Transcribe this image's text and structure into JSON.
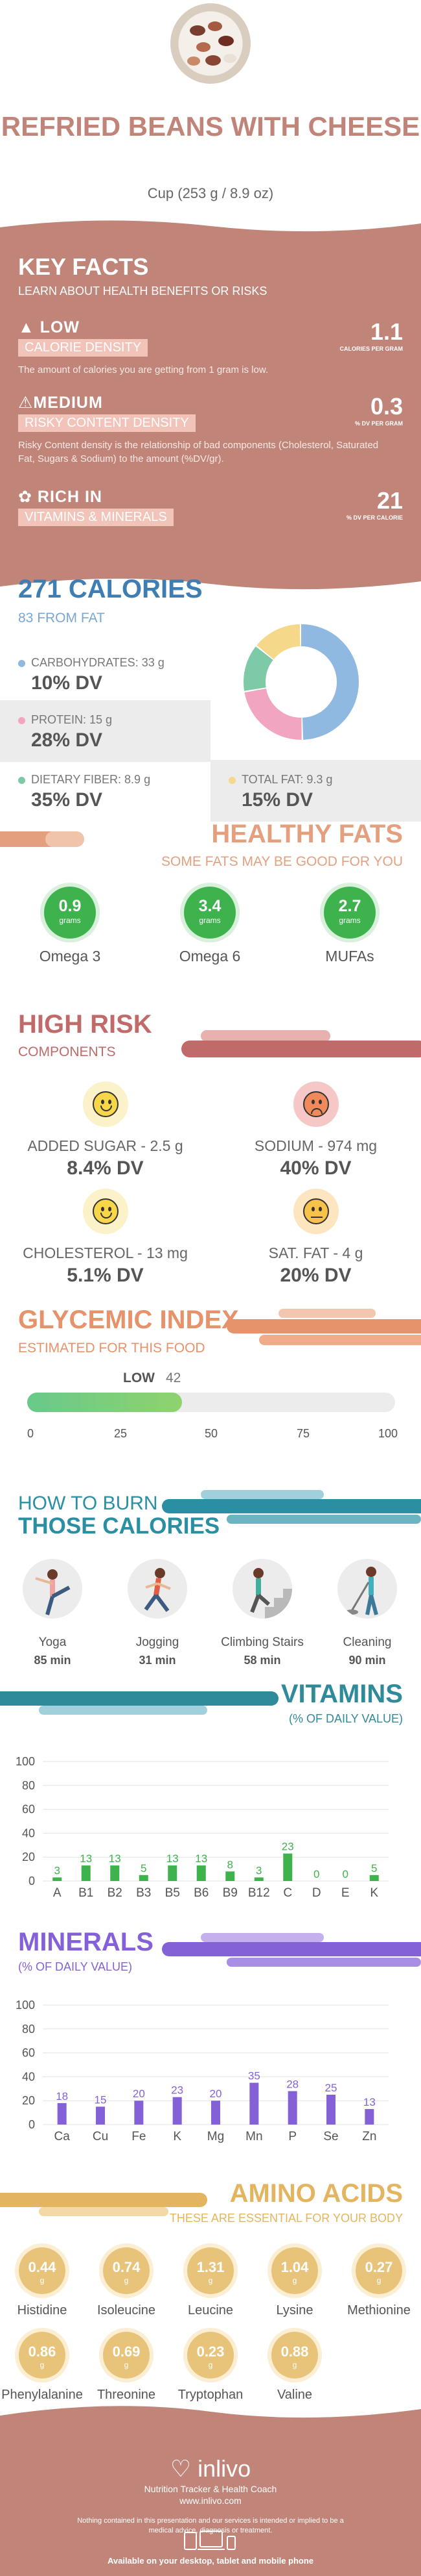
{
  "header": {
    "title": "REFRIED BEANS WITH CHEESE",
    "serving": "Cup (253 g / 8.9 oz)"
  },
  "key_facts": {
    "title": "KEY FACTS",
    "subtitle": "LEARN ABOUT HEALTH BENEFITS OR RISKS",
    "items": [
      {
        "tag1": "LOW",
        "tag2": "CALORIE DENSITY",
        "desc": "The amount of calories you are getting from 1 gram is low.",
        "value": "1.1",
        "unit": "CALORIES PER GRAM",
        "icon": "fire-icon"
      },
      {
        "tag1": "MEDIUM",
        "tag2": "RISKY CONTENT DENSITY",
        "desc": "Risky Content density is the relationship of bad components (Cholesterol, Saturated Fat, Sugars & Sodium) to the amount (%DV/gr).",
        "value": "0.3",
        "unit": "% DV PER GRAM",
        "icon": "warning-icon"
      },
      {
        "tag1": "RICH IN",
        "tag2": "VITAMINS & MINERALS",
        "desc": "",
        "value": "21",
        "unit": "% DV PER CALORIE",
        "icon": "leaf-icon"
      }
    ]
  },
  "calories": {
    "title": "271 CALORIES",
    "subtitle": "83 FROM FAT",
    "macros": [
      {
        "label": "CARBOHYDRATES",
        "amount": ": 33 g",
        "dv": "10% DV",
        "color": "#8fb9e0"
      },
      {
        "label": "PROTEIN",
        "amount": ": 15 g",
        "dv": "28% DV",
        "color": "#f2a5c0"
      },
      {
        "label": "DIETARY FIBER",
        "amount": ": 8.9 g",
        "dv": "35% DV",
        "color": "#7fcaa6"
      },
      {
        "label": "TOTAL FAT",
        "amount": ": 9.3 g",
        "dv": "15% DV",
        "color": "#f5d88a"
      }
    ],
    "donut": [
      {
        "name": "CARBOHYDRATES",
        "value": 33,
        "color": "#8fb9e0"
      },
      {
        "name": "PROTEIN",
        "value": 15,
        "color": "#f2a5c0"
      },
      {
        "name": "DIETARY FIBER",
        "value": 8.9,
        "color": "#7fcaa6"
      },
      {
        "name": "TOTAL FAT",
        "value": 9.3,
        "color": "#f5d88a"
      }
    ]
  },
  "fats": {
    "title": "HEALTHY FATS",
    "subtitle": "SOME FATS MAY BE GOOD FOR YOU",
    "unit": "grams",
    "items": [
      {
        "value": "0.9",
        "name": "Omega 3"
      },
      {
        "value": "3.4",
        "name": "Omega 6"
      },
      {
        "value": "2.7",
        "name": "MUFAs"
      }
    ]
  },
  "risk": {
    "title": "HIGH RISK",
    "subtitle": "COMPONENTS",
    "items": [
      {
        "label": "ADDED SUGAR - 2.5 g",
        "dv": "8.4% DV",
        "mood": "happy",
        "color": "#f7d64a"
      },
      {
        "label": "SODIUM - 974 mg",
        "dv": "40% DV",
        "mood": "sad",
        "color": "#f08a5d"
      },
      {
        "label": "CHOLESTEROL - 13 mg",
        "dv": "5.1% DV",
        "mood": "happy",
        "color": "#f7d64a"
      },
      {
        "label": "SAT. FAT - 4 g",
        "dv": "20% DV",
        "mood": "neutral",
        "color": "#f7c24a"
      }
    ]
  },
  "glycemic": {
    "title": "GLYCEMIC INDEX",
    "subtitle": "ESTIMATED FOR THIS FOOD",
    "level": "LOW",
    "value": 42,
    "max": 100,
    "ticks": [
      "0",
      "25",
      "50",
      "75",
      "100"
    ]
  },
  "burn": {
    "title1": "HOW TO BURN",
    "title2": "THOSE CALORIES",
    "activities": [
      {
        "name": "Yoga",
        "minutes": "85 min",
        "icon": "yoga-icon"
      },
      {
        "name": "Jogging",
        "minutes": "31 min",
        "icon": "jogging-icon"
      },
      {
        "name": "Climbing Stairs",
        "minutes": "58 min",
        "icon": "stairs-icon"
      },
      {
        "name": "Cleaning",
        "minutes": "90 min",
        "icon": "cleaning-icon"
      }
    ]
  },
  "vitamins": {
    "title": "VITAMINS",
    "subtitle": "(% OF DAILY VALUE)"
  },
  "minerals": {
    "title": "MINERALS",
    "subtitle": "(% OF DAILY VALUE)"
  },
  "chart_data": [
    {
      "type": "bar",
      "categories": [
        "A",
        "B1",
        "B2",
        "B3",
        "B5",
        "B6",
        "B9",
        "B12",
        "C",
        "D",
        "E",
        "K"
      ],
      "values": [
        3,
        13,
        13,
        5,
        13,
        13,
        8,
        3,
        23,
        0,
        0,
        5
      ],
      "title": "VITAMINS",
      "xlabel": "",
      "ylabel": "",
      "ylim": [
        0,
        100
      ],
      "yticks": [
        0,
        20,
        40,
        60,
        80,
        100
      ],
      "grid": true,
      "color": "#3eb24d"
    },
    {
      "type": "bar",
      "categories": [
        "Ca",
        "Cu",
        "Fe",
        "K",
        "Mg",
        "Mn",
        "P",
        "Se",
        "Zn"
      ],
      "values": [
        18,
        15,
        20,
        23,
        20,
        35,
        28,
        25,
        13
      ],
      "title": "MINERALS",
      "xlabel": "",
      "ylabel": "",
      "ylim": [
        0,
        100
      ],
      "yticks": [
        0,
        20,
        40,
        60,
        80,
        100
      ],
      "grid": true,
      "color": "#8561d8"
    }
  ],
  "amino": {
    "title": "AMINO ACIDS",
    "subtitle": "THESE ARE ESSENTIAL FOR YOUR BODY",
    "unit": "g",
    "items": [
      {
        "value": "0.44",
        "name": "Histidine"
      },
      {
        "value": "0.74",
        "name": "Isoleucine"
      },
      {
        "value": "1.31",
        "name": "Leucine"
      },
      {
        "value": "1.04",
        "name": "Lysine"
      },
      {
        "value": "0.27",
        "name": "Methionine"
      },
      {
        "value": "0.86",
        "name": "Phenylalanine"
      },
      {
        "value": "0.69",
        "name": "Threonine"
      },
      {
        "value": "0.23",
        "name": "Tryptophan"
      },
      {
        "value": "0.88",
        "name": "Valine"
      }
    ]
  },
  "footer": {
    "brand": "inlivo",
    "tagline": "Nutrition Tracker & Health Coach",
    "url": "www.inlivo.com",
    "disclaimer": "Nothing contained in this presentation and our services is intended or implied to be a medical advice, diagnosis or treatment.",
    "available": "Available on your desktop, tablet and mobile phone"
  },
  "colors": {
    "brand": "#c08478",
    "calories": "#3e7eb3",
    "fats": "#e4a07e",
    "risk": "#c06a6a",
    "glycemic": "#e6926b",
    "burn": "#2b8fa3",
    "vitamins": "#2f8a9a",
    "minerals": "#8561d8",
    "amino": "#e3b560"
  }
}
